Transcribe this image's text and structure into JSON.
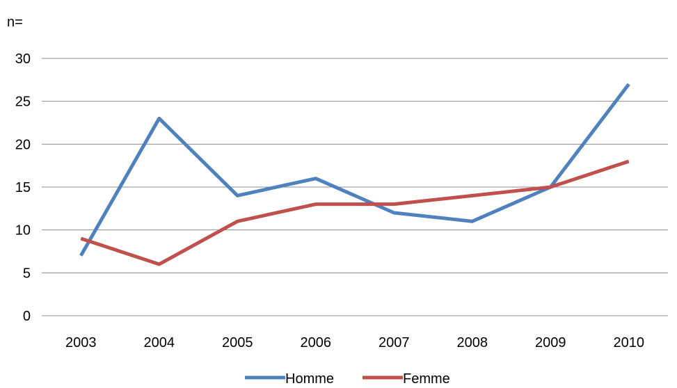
{
  "chart_data": {
    "type": "line",
    "title": "",
    "ylabel": "n=",
    "xlabel": "",
    "categories": [
      "2003",
      "2004",
      "2005",
      "2006",
      "2007",
      "2008",
      "2009",
      "2010"
    ],
    "ylim": [
      0,
      30
    ],
    "yticks": [
      0,
      5,
      10,
      15,
      20,
      25,
      30
    ],
    "grid": true,
    "legend_position": "bottom",
    "series": [
      {
        "name": "Homme",
        "color": "#4F81BD",
        "values": [
          7,
          23,
          14,
          16,
          12,
          11,
          15,
          27
        ]
      },
      {
        "name": "Femme",
        "color": "#C0504D",
        "values": [
          9,
          6,
          11,
          13,
          13,
          14,
          15,
          18
        ]
      }
    ]
  }
}
